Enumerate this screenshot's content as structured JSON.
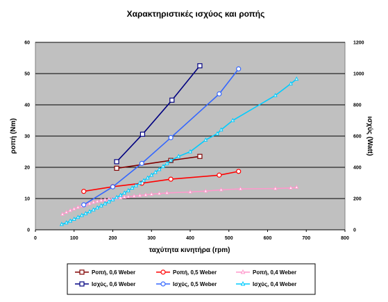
{
  "chart_data": {
    "type": "line",
    "title": "Χαρακτηριστικές ισχύος και ροπής",
    "xlabel": "ταχύτητα κινητήρα (rpm)",
    "ylabel": "ροπή (Nm)",
    "y2label": "ισχύς (Watt)",
    "xlim": [
      0,
      800
    ],
    "ylim": [
      0,
      60
    ],
    "y2lim": [
      0,
      1200
    ],
    "xticks": [
      "0",
      "100",
      "200",
      "300",
      "400",
      "500",
      "600",
      "700",
      "800"
    ],
    "yticks": [
      "0",
      "10",
      "20",
      "30",
      "40",
      "50",
      "60"
    ],
    "y2ticks": [
      "0",
      "200",
      "400",
      "600",
      "800",
      "1000",
      "1200"
    ],
    "grid": true,
    "plot_background": "#c0c0c0",
    "legend_position": "bottom",
    "series": [
      {
        "name": "Ροπή, 0,6 Weber",
        "axis": "left",
        "color": "#800000",
        "marker": "square",
        "x": [
          210,
          350,
          425
        ],
        "y": [
          19.7,
          22.2,
          23.5
        ]
      },
      {
        "name": "Ροπή, 0,5 Weber",
        "axis": "left",
        "color": "#ff0000",
        "marker": "circle",
        "x": [
          125,
          200,
          275,
          350,
          475,
          525
        ],
        "y": [
          12.3,
          13.8,
          14.9,
          16.2,
          17.5,
          18.7
        ]
      },
      {
        "name": "Ροπή, 0,4 Weber",
        "axis": "left",
        "color": "#ff99cc",
        "marker": "triangle",
        "x": [
          70,
          80,
          90,
          100,
          110,
          120,
          130,
          140,
          150,
          160,
          170,
          180,
          190,
          200,
          210,
          220,
          230,
          240,
          255,
          270,
          285,
          300,
          320,
          340,
          400,
          440,
          480,
          530,
          620,
          660,
          675
        ],
        "y": [
          5.0,
          5.6,
          6.2,
          6.7,
          7.2,
          7.6,
          8.0,
          8.4,
          8.8,
          9.1,
          9.4,
          9.6,
          9.8,
          10.0,
          10.1,
          10.3,
          10.5,
          10.6,
          10.8,
          11.0,
          11.2,
          11.4,
          11.6,
          11.8,
          12.1,
          12.4,
          12.8,
          13.1,
          13.2,
          13.4,
          13.6
        ]
      },
      {
        "name": "Ισχύς, 0,6 Weber",
        "axis": "right",
        "color": "#000080",
        "marker": "square",
        "x": [
          210,
          277,
          353,
          425
        ],
        "y": [
          436,
          612,
          830,
          1050
        ]
      },
      {
        "name": "Ισχύς, 0,5 Weber",
        "axis": "right",
        "color": "#3366ff",
        "marker": "circle",
        "x": [
          125,
          200,
          275,
          350,
          475,
          525
        ],
        "y": [
          160,
          275,
          425,
          590,
          870,
          1030
        ]
      },
      {
        "name": "Ισχύς, 0,4 Weber",
        "axis": "right",
        "color": "#00ccff",
        "marker": "triangle",
        "x": [
          68,
          80,
          90,
          100,
          110,
          120,
          130,
          140,
          150,
          160,
          170,
          180,
          190,
          200,
          210,
          220,
          230,
          240,
          250,
          260,
          270,
          280,
          290,
          300,
          310,
          320,
          330,
          340,
          350,
          370,
          400,
          440,
          470,
          480,
          510,
          620,
          660,
          675
        ],
        "y": [
          35,
          45,
          56,
          68,
          80,
          92,
          104,
          116,
          128,
          141,
          154,
          167,
          180,
          193,
          207,
          221,
          236,
          251,
          267,
          283,
          299,
          315,
          332,
          350,
          368,
          386,
          405,
          424,
          443,
          470,
          500,
          575,
          615,
          640,
          700,
          860,
          935,
          965
        ]
      }
    ]
  }
}
